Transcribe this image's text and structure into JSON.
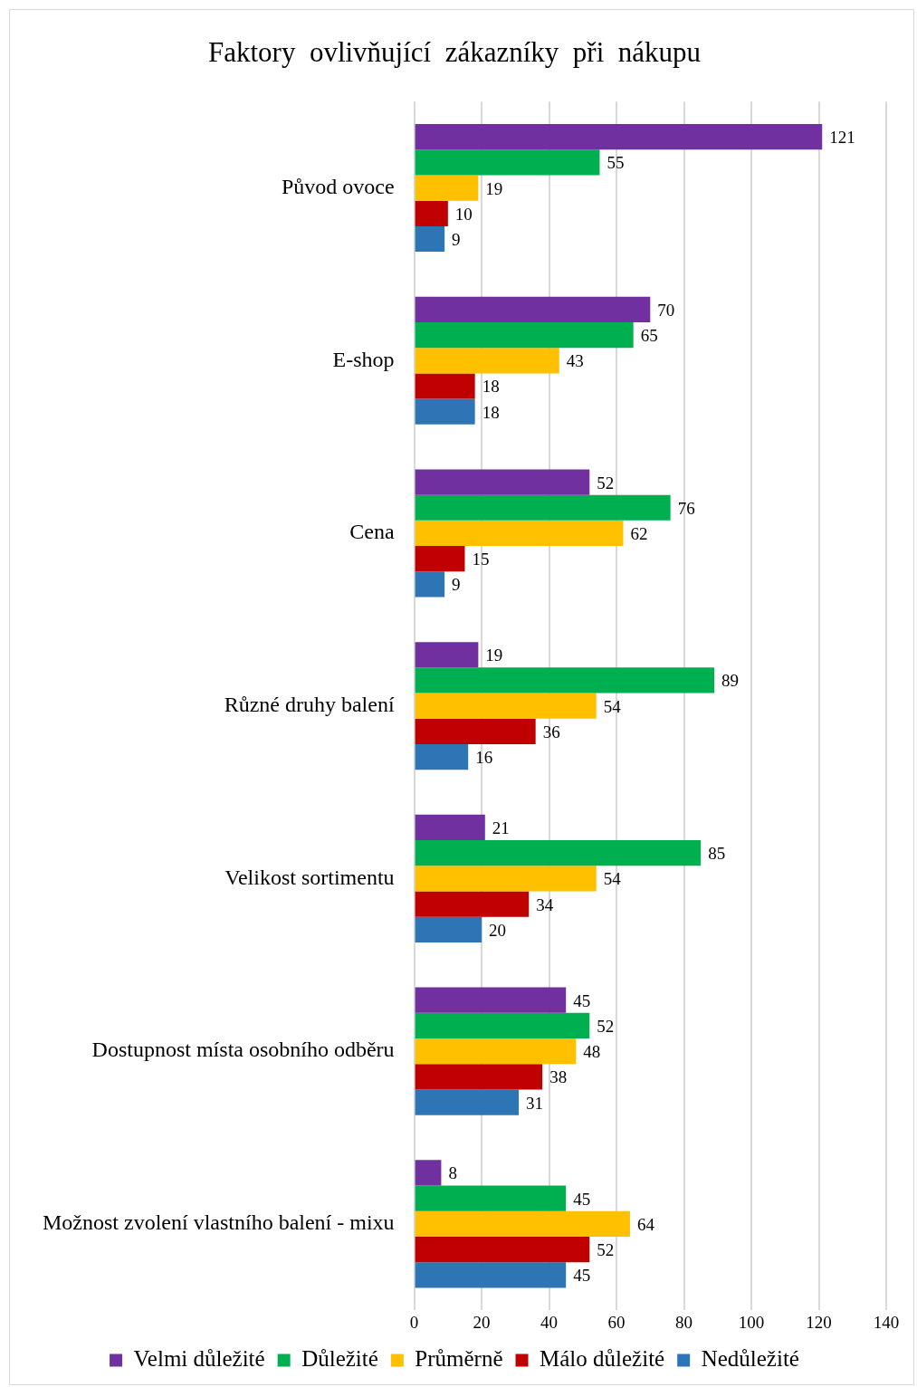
{
  "chart_data": {
    "type": "bar",
    "orientation": "horizontal",
    "title": "Faktory  ovlivňující  zákazníky  při  nákupu",
    "categories": [
      "Původ ovoce",
      "E-shop",
      "Cena",
      "Různé druhy balení",
      "Velikost sortimentu",
      "Dostupnost místa osobního odběru",
      "Možnost zvolení vlastního balení - mixu"
    ],
    "series": [
      {
        "name": "Velmi důležité",
        "color": "#7030a0",
        "values": [
          121,
          70,
          52,
          19,
          21,
          45,
          8
        ]
      },
      {
        "name": "Důležité",
        "color": "#00b050",
        "values": [
          55,
          65,
          76,
          89,
          85,
          52,
          45
        ]
      },
      {
        "name": "Průměrně",
        "color": "#ffc000",
        "values": [
          19,
          43,
          62,
          54,
          54,
          48,
          64
        ]
      },
      {
        "name": "Málo důležité",
        "color": "#c00000",
        "values": [
          10,
          18,
          15,
          36,
          34,
          38,
          52
        ]
      },
      {
        "name": "Nedůležité",
        "color": "#2e75b6",
        "values": [
          9,
          18,
          9,
          16,
          20,
          31,
          45
        ]
      }
    ],
    "xlim": [
      0,
      140
    ],
    "xticks": [
      0,
      20,
      40,
      60,
      80,
      100,
      120,
      140
    ],
    "grid": "x",
    "legend": "bottom",
    "data_labels": true
  }
}
